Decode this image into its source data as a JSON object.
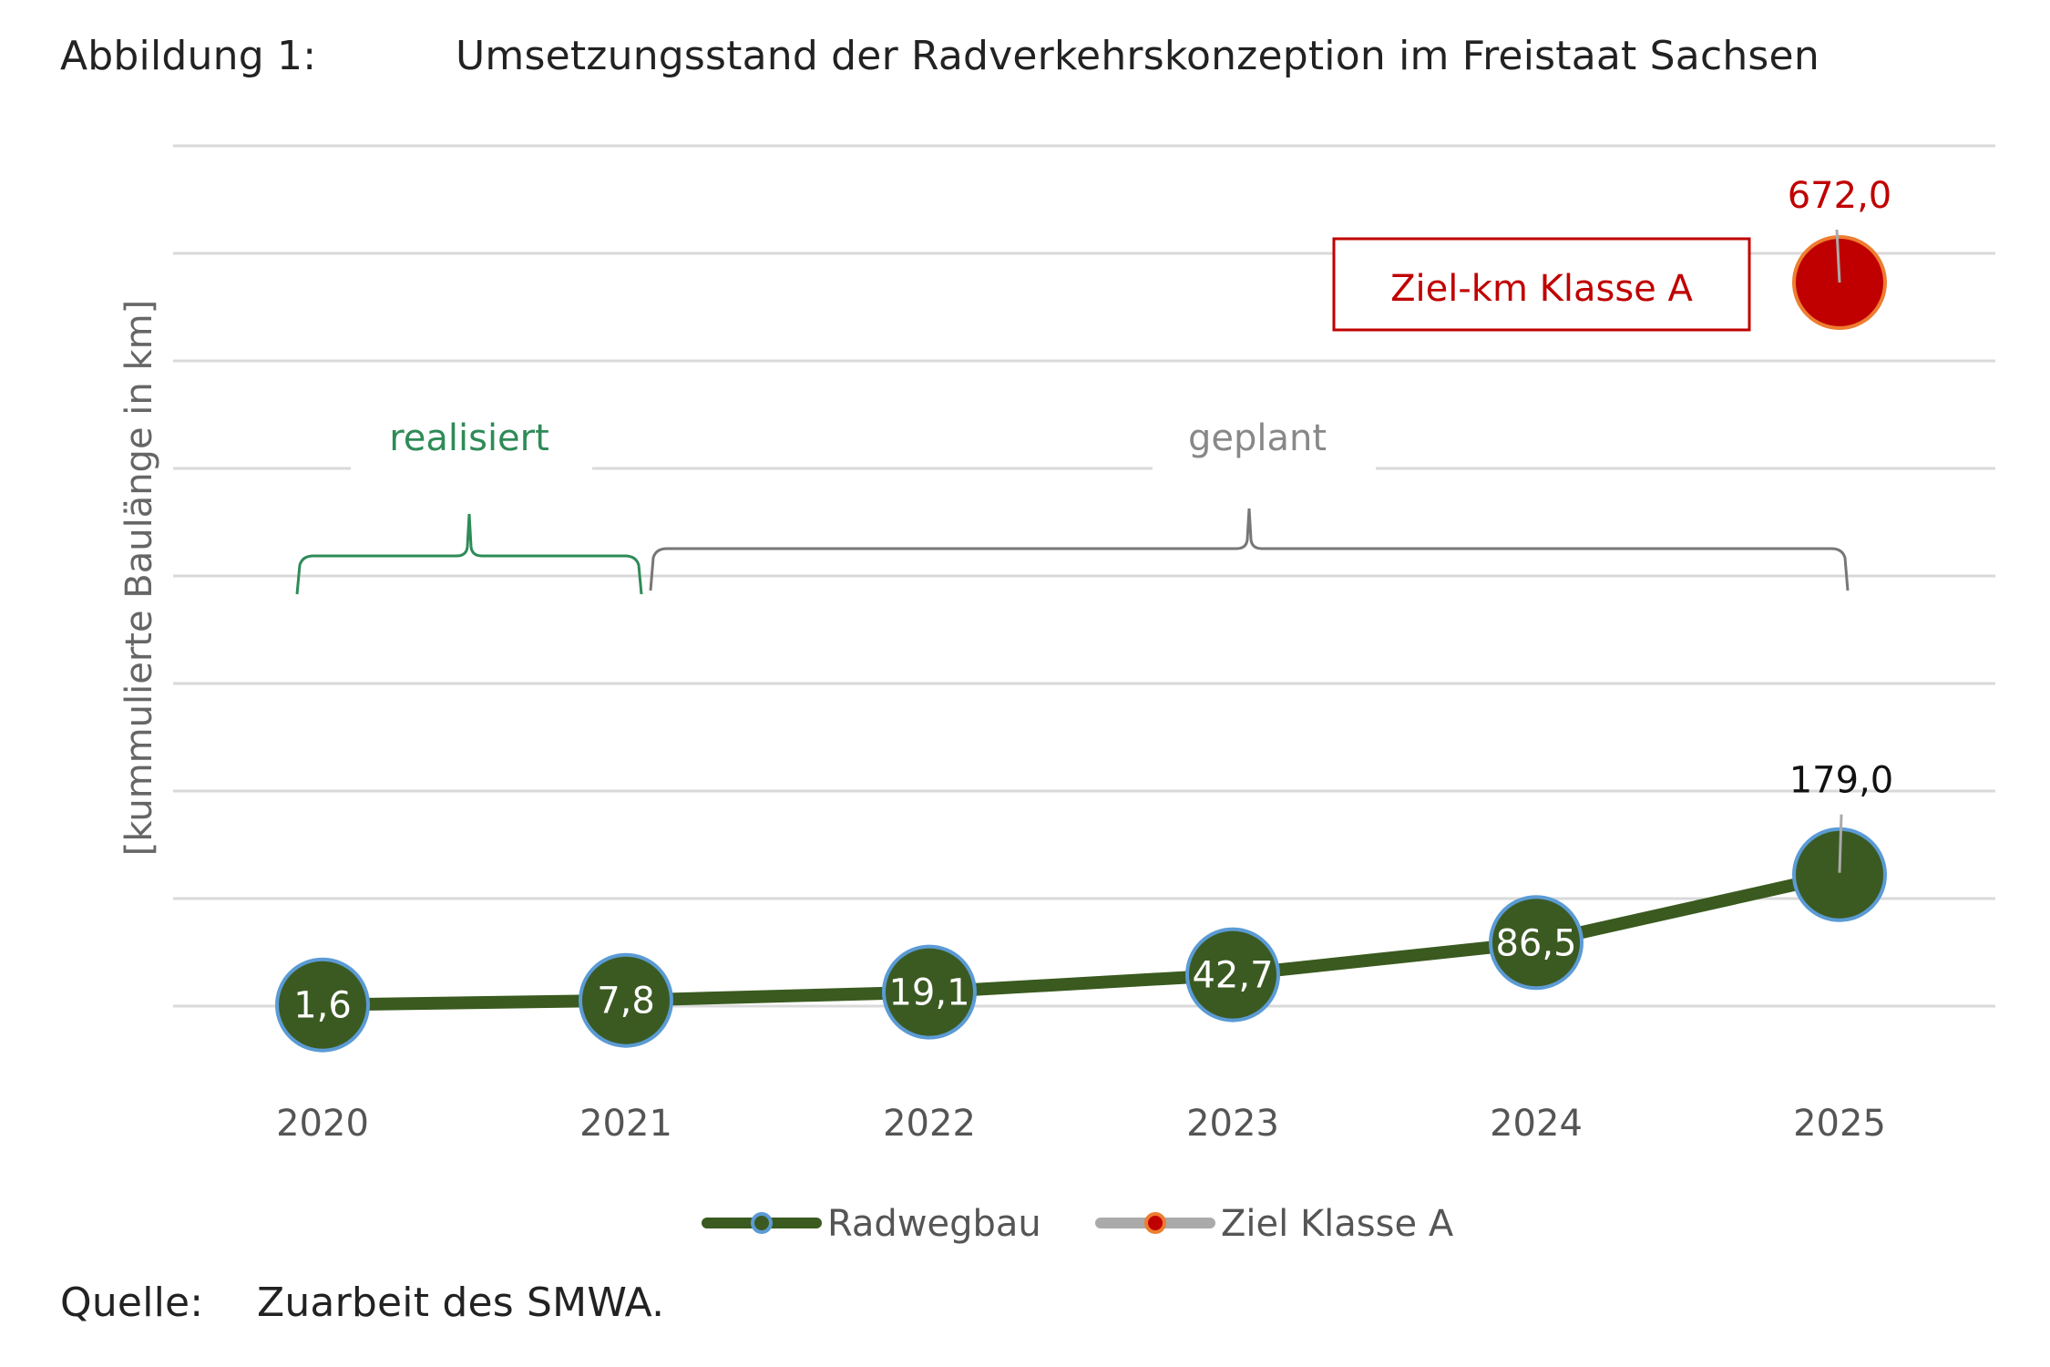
{
  "figure": {
    "label": "Abbildung 1:",
    "title": "Umsetzungsstand der Radverkehrskonzeption im Freistaat Sachsen"
  },
  "source": {
    "label": "Quelle:",
    "text": "Zuarbeit des SMWA."
  },
  "colors": {
    "series_line": "#3a5a1f",
    "series_marker": "#3b5a22",
    "marker_border": "#5b9bd5",
    "target_marker": "#c00000",
    "target_border": "#ed7d31",
    "target_text": "#c00000",
    "realized": "#2e8b57",
    "planned": "#888888",
    "grid": "#d9d9d9"
  },
  "chart_data": {
    "type": "line",
    "title": "",
    "xlabel": "",
    "ylabel": "[kummulierte Baulänge in km]",
    "categories": [
      "2020",
      "2021",
      "2022",
      "2023",
      "2024",
      "2025"
    ],
    "series": [
      {
        "name": "Radwegbau",
        "values": [
          1.6,
          7.8,
          19.1,
          42.7,
          86.5,
          179.0
        ],
        "labels": [
          "1,6",
          "7,8",
          "19,1",
          "42,7",
          "86,5",
          "179,0"
        ]
      },
      {
        "name": "Ziel Klasse A",
        "values": [
          null,
          null,
          null,
          null,
          null,
          672.0
        ],
        "labels": [
          "",
          "",
          "",
          "",
          "",
          "672,0"
        ]
      }
    ],
    "legend": [
      "Radwegbau",
      "Ziel Klasse A"
    ],
    "legend_position": "bottom",
    "grid": true,
    "annotations": {
      "target_box": "Ziel-km Klasse A",
      "realized": "realisiert",
      "planned": "geplant"
    }
  }
}
